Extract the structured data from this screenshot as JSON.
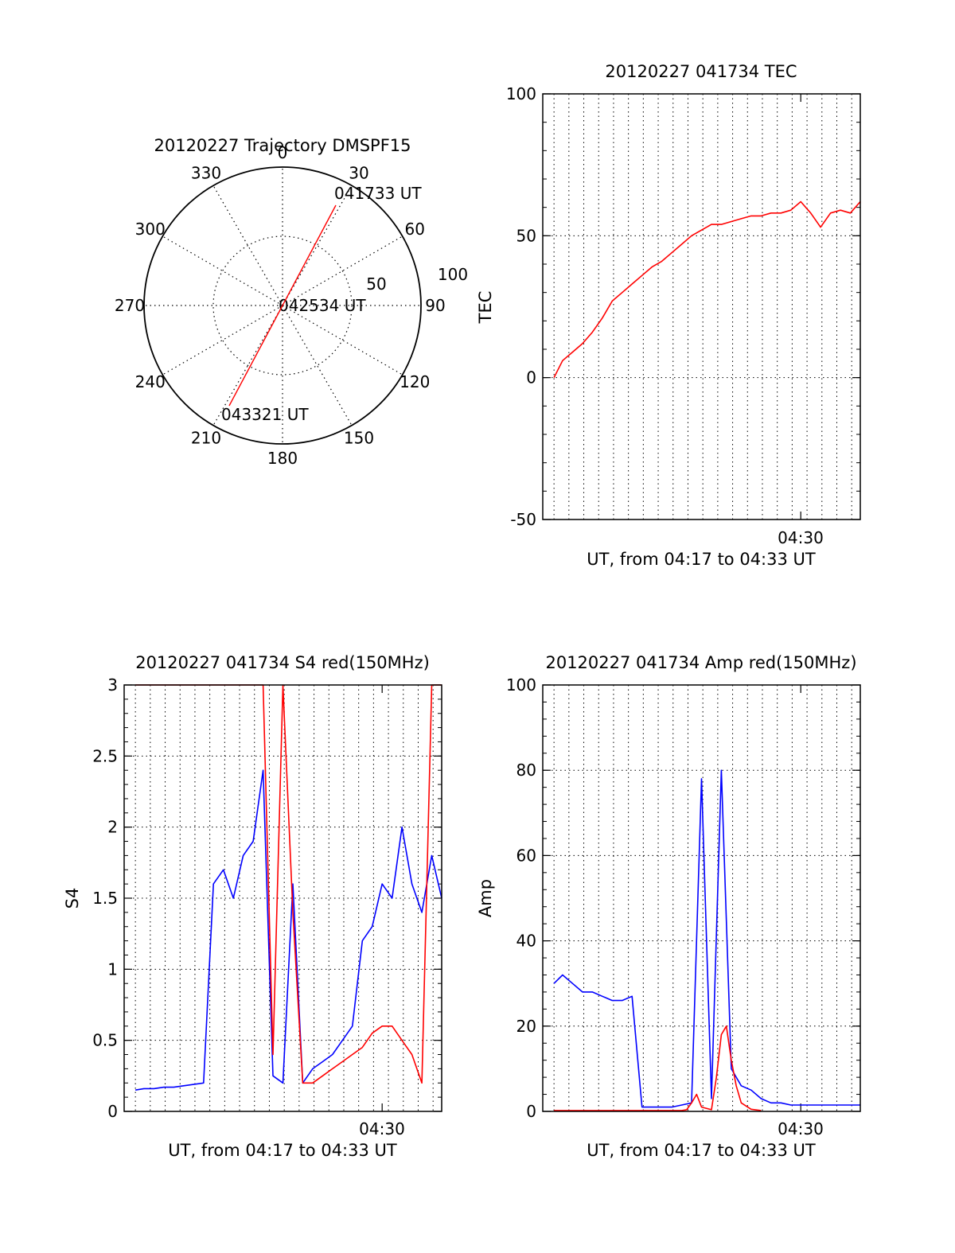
{
  "colors": {
    "red": "#ff0000",
    "blue": "#0000ff",
    "axis": "#000000",
    "grid": "#000000"
  },
  "chart_data": [
    {
      "id": "trajectory",
      "type": "polar",
      "title": "20120227 Trajectory DMSPF15",
      "azimuth_labels": [
        "0",
        "30",
        "60",
        "90",
        "120",
        "150",
        "180",
        "210",
        "240",
        "270",
        "300",
        "330"
      ],
      "radial_ticks": [
        "50",
        "100"
      ],
      "radial_max": 100,
      "grid": true,
      "annotations": [
        "041733 UT",
        "042534 UT",
        "043321 UT"
      ],
      "track": {
        "color": "red",
        "points": [
          {
            "azimuth": 28,
            "radius": 82
          },
          {
            "azimuth": 0,
            "radius": 0
          },
          {
            "azimuth": 208,
            "radius": 82
          }
        ]
      }
    },
    {
      "id": "tec",
      "type": "line",
      "title": "20120227 041734 TEC",
      "xlabel": "UT, from 04:17 to 04:33 UT",
      "ylabel": "TEC",
      "x_tick_labels": [
        "04:30"
      ],
      "xlim": [
        "04:17:00",
        "04:33:00"
      ],
      "ylim": [
        -50,
        100
      ],
      "y_ticks": [
        -50,
        0,
        50,
        100
      ],
      "grid": true,
      "series": [
        {
          "color": "red",
          "x": [
            "04:17:34",
            "04:18:00",
            "04:18:30",
            "04:19:00",
            "04:19:30",
            "04:20:00",
            "04:20:30",
            "04:21:00",
            "04:21:30",
            "04:22:00",
            "04:22:30",
            "04:23:00",
            "04:23:30",
            "04:24:00",
            "04:24:30",
            "04:25:00",
            "04:25:30",
            "04:26:00",
            "04:26:30",
            "04:27:00",
            "04:27:30",
            "04:28:00",
            "04:28:30",
            "04:29:00",
            "04:29:30",
            "04:30:00",
            "04:30:30",
            "04:31:00",
            "04:31:30",
            "04:32:00",
            "04:32:30",
            "04:33:00"
          ],
          "y": [
            0,
            6,
            9,
            12,
            16,
            21,
            27,
            30,
            33,
            36,
            39,
            41,
            44,
            47,
            50,
            52,
            54,
            54,
            55,
            56,
            57,
            57,
            58,
            58,
            59,
            62,
            58,
            53,
            58,
            59,
            58,
            62
          ]
        }
      ]
    },
    {
      "id": "s4",
      "type": "line",
      "title": "20120227 041734 S4 red(150MHz)",
      "xlabel": "UT, from 04:17 to 04:33 UT",
      "ylabel": "S4",
      "x_tick_labels": [
        "04:30"
      ],
      "xlim": [
        "04:17:00",
        "04:33:00"
      ],
      "ylim": [
        0,
        3
      ],
      "y_ticks": [
        "0",
        "0.5",
        "1",
        "1.5",
        "2",
        "2.5",
        "3"
      ],
      "grid": true,
      "series": [
        {
          "color": "blue",
          "x": [
            "04:17:34",
            "04:18:00",
            "04:18:30",
            "04:19:00",
            "04:19:30",
            "04:20:00",
            "04:20:30",
            "04:21:00",
            "04:21:30",
            "04:22:00",
            "04:22:30",
            "04:23:00",
            "04:23:30",
            "04:24:00",
            "04:24:30",
            "04:25:00",
            "04:25:30",
            "04:26:00",
            "04:26:30",
            "04:27:00",
            "04:27:30",
            "04:28:00",
            "04:28:30",
            "04:29:00",
            "04:29:30",
            "04:30:00",
            "04:30:30",
            "04:31:00",
            "04:31:30",
            "04:32:00",
            "04:32:30",
            "04:33:00"
          ],
          "y": [
            0.15,
            0.16,
            0.16,
            0.17,
            0.17,
            0.18,
            0.19,
            0.2,
            1.6,
            1.7,
            1.5,
            1.8,
            1.9,
            2.4,
            0.25,
            0.2,
            1.6,
            0.2,
            0.3,
            0.35,
            0.4,
            0.5,
            0.6,
            1.2,
            1.3,
            1.6,
            1.5,
            2.0,
            1.6,
            1.4,
            1.8,
            1.5
          ]
        },
        {
          "color": "red",
          "x": [
            "04:17:34",
            "04:18:00",
            "04:18:30",
            "04:19:00",
            "04:19:30",
            "04:20:00",
            "04:20:30",
            "04:21:00",
            "04:21:30",
            "04:22:00",
            "04:22:30",
            "04:23:00",
            "04:23:30",
            "04:24:00",
            "04:24:30",
            "04:25:00",
            "04:25:30",
            "04:26:00",
            "04:26:30",
            "04:27:00",
            "04:27:30",
            "04:28:00",
            "04:28:30",
            "04:29:00",
            "04:29:30",
            "04:30:00",
            "04:30:30",
            "04:31:00",
            "04:31:30",
            "04:32:00",
            "04:32:30",
            "04:33:00"
          ],
          "y": [
            3,
            3,
            3,
            3,
            3,
            3,
            3,
            3,
            3,
            3,
            3,
            3,
            3,
            3,
            0.4,
            3,
            1.4,
            0.2,
            0.2,
            0.25,
            0.3,
            0.35,
            0.4,
            0.45,
            0.55,
            0.6,
            0.6,
            0.5,
            0.4,
            0.2,
            3,
            3
          ]
        }
      ]
    },
    {
      "id": "amp",
      "type": "line",
      "title": "20120227 041734 Amp red(150MHz)",
      "xlabel": "UT, from 04:17 to 04:33 UT",
      "ylabel": "Amp",
      "x_tick_labels": [
        "04:30"
      ],
      "xlim": [
        "04:17:00",
        "04:33:00"
      ],
      "ylim": [
        0,
        100
      ],
      "y_ticks": [
        0,
        20,
        40,
        60,
        80,
        100
      ],
      "grid": true,
      "series": [
        {
          "color": "blue",
          "x": [
            "04:17:34",
            "04:18:00",
            "04:18:30",
            "04:19:00",
            "04:19:30",
            "04:20:00",
            "04:20:30",
            "04:21:00",
            "04:21:30",
            "04:22:00",
            "04:22:30",
            "04:23:00",
            "04:23:30",
            "04:24:00",
            "04:24:30",
            "04:25:00",
            "04:25:30",
            "04:26:00",
            "04:26:30",
            "04:27:00",
            "04:27:30",
            "04:28:00",
            "04:28:30",
            "04:29:00",
            "04:29:30",
            "04:30:00",
            "04:30:30",
            "04:31:00",
            "04:31:30",
            "04:32:00",
            "04:32:30",
            "04:33:00"
          ],
          "y": [
            30,
            32,
            30,
            28,
            28,
            27,
            26,
            26,
            27,
            1,
            1,
            1,
            1,
            1.5,
            2,
            78,
            3,
            80,
            10,
            6,
            5,
            3,
            2,
            2,
            1.5,
            1.5,
            1.5,
            1.5,
            1.5,
            1.5,
            1.5,
            1.5
          ]
        },
        {
          "color": "red",
          "x": [
            "04:17:34",
            "04:18:00",
            "04:19:00",
            "04:20:00",
            "04:21:00",
            "04:22:00",
            "04:23:00",
            "04:24:00",
            "04:24:15",
            "04:24:30",
            "04:24:45",
            "04:25:00",
            "04:25:30",
            "04:25:45",
            "04:26:00",
            "04:26:15",
            "04:26:30",
            "04:26:45",
            "04:27:00",
            "04:27:30",
            "04:28:00"
          ],
          "y": [
            0.2,
            0.2,
            0.2,
            0.2,
            0.2,
            0.2,
            0.2,
            0.2,
            0.4,
            2,
            4,
            1,
            0.4,
            8,
            18,
            20,
            12,
            6,
            2,
            0.5,
            0.2
          ]
        }
      ]
    }
  ]
}
